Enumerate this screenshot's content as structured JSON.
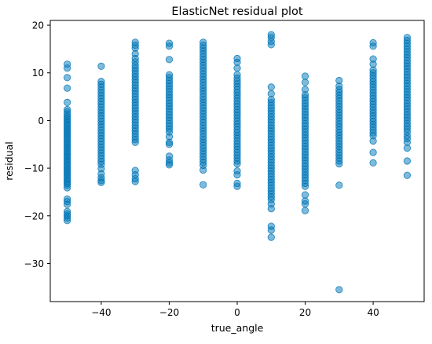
{
  "chart_data": {
    "type": "scatter",
    "title": "ElasticNet residual plot",
    "xlabel": "true_angle",
    "ylabel": "residual",
    "xlim": [
      -55,
      55
    ],
    "ylim": [
      -38,
      21
    ],
    "xticks": [
      -40,
      -20,
      0,
      20,
      40
    ],
    "xtick_labels": [
      "−40",
      "−20",
      "0",
      "20",
      "40"
    ],
    "yticks": [
      -30,
      -20,
      -10,
      0,
      10,
      20
    ],
    "ytick_labels": [
      "−30",
      "−20",
      "−10",
      "0",
      "10",
      "20"
    ],
    "grid": false,
    "legend": "none",
    "point_color": "#0076b6",
    "point_alpha": 0.5,
    "columns": [
      {
        "x": -50,
        "values": [
          11.8,
          11,
          9,
          6.8,
          3.8,
          2.3,
          1.8,
          1.3,
          0.8,
          0.4,
          0,
          -0.4,
          -0.8,
          -1.2,
          -1.6,
          -2,
          -2.4,
          -2.8,
          -3.2,
          -3.6,
          -4,
          -4.4,
          -4.8,
          -5.2,
          -5.6,
          -6,
          -6.4,
          -6.8,
          -7.2,
          -7.6,
          -8,
          -8.4,
          -8.8,
          -9.2,
          -9.6,
          -10,
          -10.4,
          -10.8,
          -11.2,
          -11.6,
          -12,
          -12.4,
          -12.8,
          -13.2,
          -13.6,
          -14.1,
          -16.5,
          -17,
          -17.6,
          -19.1,
          -19.6,
          -20,
          -20.5,
          -21
        ]
      },
      {
        "x": -40,
        "values": [
          11.4,
          8.2,
          7.6,
          7,
          6.4,
          5.8,
          5.2,
          4.6,
          4,
          3.4,
          2.8,
          2.2,
          1.6,
          1,
          0.4,
          -0.2,
          -0.8,
          -1.4,
          -2,
          -2.6,
          -3.2,
          -3.8,
          -4.4,
          -5,
          -5.6,
          -6.2,
          -6.8,
          -7.4,
          -8,
          -8.6,
          -9.2,
          -10.1,
          -11.2,
          -12,
          -12.6,
          -13
        ]
      },
      {
        "x": -30,
        "values": [
          16.4,
          15.8,
          15.2,
          14,
          13,
          12.3,
          11.6,
          11,
          10.4,
          9.8,
          9.2,
          8.6,
          8,
          7.4,
          6.8,
          6.2,
          5.6,
          5,
          4.4,
          3.8,
          3.2,
          2.6,
          2,
          1.4,
          0.8,
          0.2,
          -0.4,
          -1,
          -1.6,
          -2.2,
          -2.8,
          -3.4,
          -4,
          -4.6,
          -10.5,
          -11.4,
          -12.2,
          -12.8
        ]
      },
      {
        "x": -20,
        "values": [
          16.2,
          15.6,
          12.8,
          9.6,
          9,
          8.4,
          7.8,
          7.2,
          6.6,
          6,
          5.4,
          4.8,
          4.2,
          3.6,
          3,
          2.4,
          1.8,
          1.2,
          0.6,
          0,
          -0.6,
          -1.2,
          -1.8,
          -2.4,
          -3.4,
          -4.6,
          -5,
          -7.5,
          -8.3,
          -8.9,
          -9.3
        ]
      },
      {
        "x": -10,
        "values": [
          16.4,
          15.8,
          15.2,
          14.6,
          14,
          13.4,
          12.8,
          12.2,
          11.6,
          11,
          10.4,
          9.8,
          9.2,
          8.6,
          8,
          7.4,
          6.8,
          6.2,
          5.6,
          5,
          4.4,
          3.8,
          3.2,
          2.6,
          2,
          1.4,
          0.8,
          0.2,
          -0.4,
          -1,
          -1.6,
          -2.2,
          -2.8,
          -3.4,
          -4,
          -4.6,
          -5.2,
          -5.8,
          -6.4,
          -7,
          -7.6,
          -8.2,
          -8.8,
          -9.4,
          -10.4,
          -13.5
        ]
      },
      {
        "x": 0,
        "values": [
          13,
          12.2,
          11,
          9.6,
          8.9,
          8.3,
          7.7,
          7.1,
          6.5,
          5.9,
          5.3,
          4.7,
          4.1,
          3.5,
          2.9,
          2.3,
          1.7,
          1.1,
          0.5,
          -0.1,
          -0.7,
          -1.3,
          -1.9,
          -2.5,
          -3.1,
          -3.7,
          -4.3,
          -4.9,
          -5.5,
          -6.1,
          -6.7,
          -7.3,
          -7.9,
          -8.5,
          -9.1,
          -10.6,
          -11.4,
          -13.2,
          -13.8
        ]
      },
      {
        "x": 10,
        "values": [
          18,
          17.4,
          16.6,
          15.9,
          7,
          5.6,
          4.4,
          3.8,
          3.2,
          2.6,
          2,
          1.4,
          0.8,
          0.2,
          -0.4,
          -1,
          -1.6,
          -2.2,
          -2.8,
          -3.4,
          -4,
          -4.6,
          -5.2,
          -5.8,
          -6.4,
          -7,
          -7.6,
          -8.2,
          -8.8,
          -9.4,
          -10,
          -10.6,
          -11.2,
          -11.8,
          -12.4,
          -13,
          -13.6,
          -14.2,
          -14.8,
          -15.4,
          -16,
          -16.6,
          -17.5,
          -18.5,
          -22.2,
          -23,
          -24.5
        ]
      },
      {
        "x": 20,
        "values": [
          9.3,
          8,
          6.5,
          5.4,
          4.8,
          4.2,
          3.6,
          3,
          2.4,
          1.8,
          1.2,
          0.6,
          0,
          -0.6,
          -1.2,
          -1.8,
          -2.4,
          -3,
          -3.6,
          -4.2,
          -4.8,
          -5.4,
          -6,
          -6.6,
          -7.2,
          -7.8,
          -8.4,
          -9,
          -9.6,
          -10.2,
          -10.8,
          -11.4,
          -12,
          -12.6,
          -13.2,
          -13.8,
          -15.6,
          -16.9,
          -17.5,
          -18.9
        ]
      },
      {
        "x": 30,
        "values": [
          8.4,
          7.2,
          6.5,
          5.9,
          5.3,
          4.7,
          4.1,
          3.5,
          2.9,
          2.3,
          1.7,
          1.1,
          0.5,
          -0.1,
          -0.7,
          -1.3,
          -1.9,
          -2.5,
          -3.1,
          -3.7,
          -4.3,
          -4.9,
          -5.5,
          -6.1,
          -6.7,
          -7.3,
          -7.9,
          -8.5,
          -9.1,
          -13.6,
          -35.5
        ]
      },
      {
        "x": 40,
        "values": [
          16.3,
          15.6,
          12.9,
          11.8,
          10.6,
          10,
          9.4,
          8.8,
          8.2,
          7.6,
          7,
          6.4,
          5.8,
          5.2,
          4.6,
          4,
          3.4,
          2.8,
          2.2,
          1.6,
          1,
          0.4,
          -0.2,
          -0.8,
          -1.4,
          -2,
          -2.6,
          -3.2,
          -4.3,
          -6.7,
          -8.9
        ]
      },
      {
        "x": 50,
        "values": [
          17.4,
          16.8,
          16.2,
          15.6,
          15,
          14.4,
          13.8,
          13.2,
          12.6,
          12,
          11.4,
          10.8,
          10.2,
          9.6,
          9,
          8.4,
          7.8,
          7.2,
          6.6,
          6,
          5.4,
          4.8,
          4.2,
          3.6,
          3,
          2.4,
          1.8,
          1.2,
          0.6,
          0,
          -0.6,
          -1.2,
          -1.8,
          -2.4,
          -3.2,
          -3.8,
          -4.6,
          -5.8,
          -8.5,
          -11.5
        ]
      }
    ]
  }
}
